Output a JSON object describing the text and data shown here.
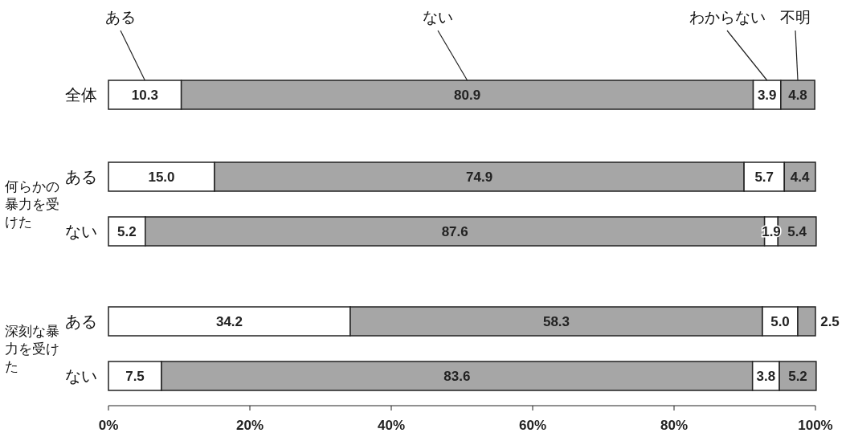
{
  "chart_data": {
    "type": "bar",
    "orientation": "horizontal",
    "stacked": true,
    "categories": [
      "全体",
      "ある",
      "ない",
      "ある",
      "ない"
    ],
    "series": [
      {
        "name": "ある",
        "color": "#ffffff",
        "values": [
          10.3,
          15.0,
          5.2,
          34.2,
          7.5
        ],
        "value_labels": [
          "10.3",
          "15.0",
          "5.2",
          "34.2",
          "7.5"
        ]
      },
      {
        "name": "ない",
        "color": "#a6a6a6",
        "values": [
          80.9,
          74.9,
          87.6,
          58.3,
          83.6
        ],
        "value_labels": [
          "80.9",
          "74.9",
          "87.6",
          "58.3",
          "83.6"
        ]
      },
      {
        "name": "わからない",
        "color": "#ffffff",
        "values": [
          3.9,
          5.7,
          1.9,
          5.0,
          3.8
        ],
        "value_labels": [
          "3.9",
          "5.7",
          "1.9",
          "5.0",
          "3.8"
        ]
      },
      {
        "name": "不明",
        "color": "#a6a6a6",
        "values": [
          4.8,
          4.4,
          5.4,
          2.5,
          5.2
        ],
        "value_labels": [
          "4.8",
          "4.4",
          "5.4",
          "2.5",
          "5.2"
        ]
      }
    ],
    "xlim": [
      0,
      100
    ],
    "xticks": [
      {
        "value": 0,
        "label": "0%"
      },
      {
        "value": 20,
        "label": "20%"
      },
      {
        "value": 40,
        "label": "40%"
      },
      {
        "value": 60,
        "label": "60%"
      },
      {
        "value": 80,
        "label": "80%"
      },
      {
        "value": 100,
        "label": "100%"
      }
    ],
    "annotations": [
      "何らかの暴力を受けた",
      "深刻な暴力を受けた"
    ],
    "legend": "top",
    "grid": false
  }
}
